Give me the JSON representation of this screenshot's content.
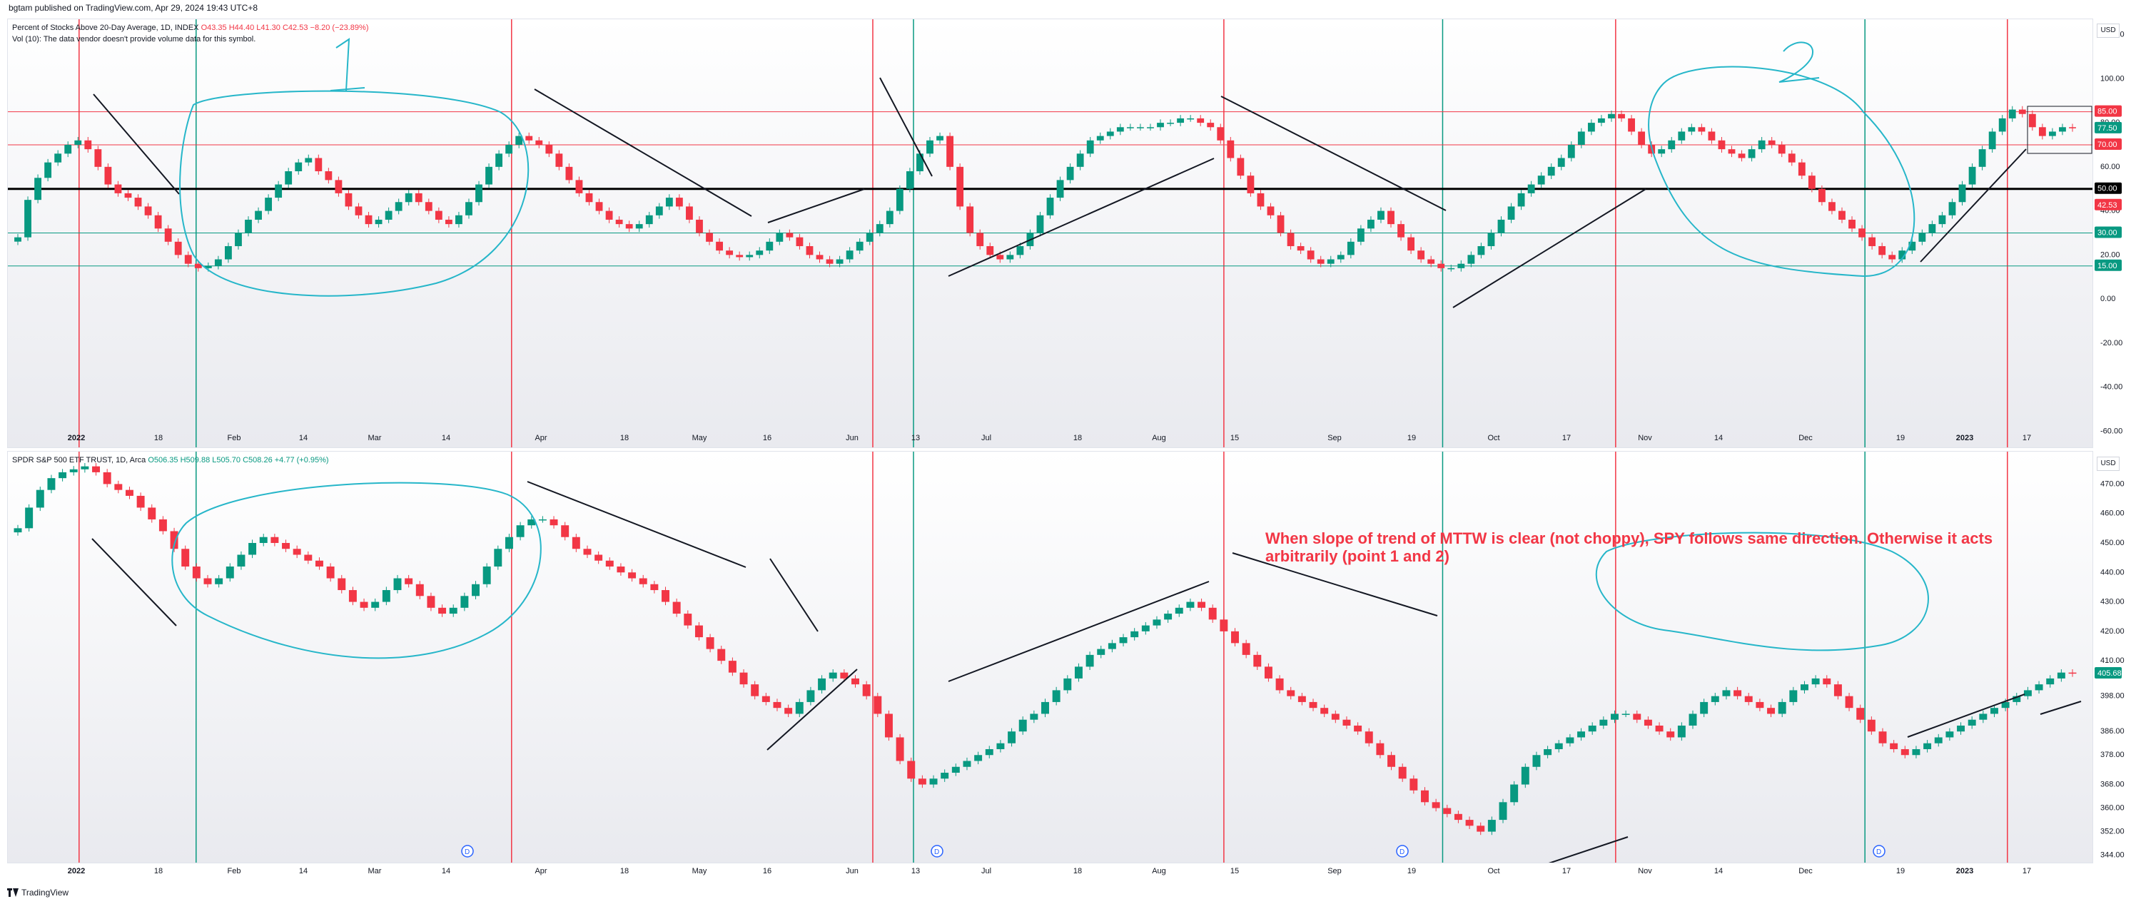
{
  "published": "bgtam published on TradingView.com, Apr 29, 2024 19:43 UTC+8",
  "top_pane": {
    "title": "Percent of Stocks Above 20-Day Average, 1D, INDEX",
    "ohlc": {
      "o": "O43.35",
      "h": "H44.40",
      "l": "L41.30",
      "c": "C42.53",
      "chg": "−8.20 (−23.89%)"
    },
    "vol_note": "Vol (10): The data vendor doesn't provide volume data for this symbol.",
    "handwritten_labels": [
      "1",
      "2"
    ]
  },
  "bottom_pane": {
    "title": "SPDR S&P 500 ETF TRUST, 1D, Arca",
    "ohlc": {
      "o": "O506.35",
      "h": "H509.88",
      "l": "L505.70",
      "c": "C508.26",
      "chg": "+4.77 (+0.95%)"
    },
    "dividend_marker": "D"
  },
  "currency": "USD",
  "annotation": "When slope of trend of MTTW is clear (not choppy), SPY follows same direction. Otherwise it acts arbitrarily (point 1 and 2)",
  "footer": "TradingView",
  "colors": {
    "up": "#089981",
    "down": "#f23645",
    "red_line": "#f23645",
    "green_line": "#089981",
    "circle": "#26b6c9",
    "trend": "#131722"
  },
  "x_axis": {
    "labels": [
      {
        "t": "2022",
        "bold": true
      },
      {
        "t": "18"
      },
      {
        "t": "Feb"
      },
      {
        "t": "14"
      },
      {
        "t": "Mar"
      },
      {
        "t": "14"
      },
      {
        "t": "Apr"
      },
      {
        "t": "18"
      },
      {
        "t": "May"
      },
      {
        "t": "16"
      },
      {
        "t": "Jun"
      },
      {
        "t": "13"
      },
      {
        "t": "Jul"
      },
      {
        "t": "18"
      },
      {
        "t": "Aug"
      },
      {
        "t": "15"
      },
      {
        "t": "Sep"
      },
      {
        "t": "19"
      },
      {
        "t": "Oct"
      },
      {
        "t": "17"
      },
      {
        "t": "Nov"
      },
      {
        "t": "14"
      },
      {
        "t": "Dec"
      },
      {
        "t": "19"
      },
      {
        "t": "2023",
        "bold": true
      },
      {
        "t": "17"
      }
    ]
  },
  "chart_data": [
    {
      "type": "candlestick",
      "name": "Percent of Stocks Above 20-Day Average",
      "y_ticks": [
        120,
        100,
        80,
        60,
        40,
        20,
        0,
        -20,
        -40,
        -60
      ],
      "ylim": [
        -68,
        127
      ],
      "horizontal_levels": [
        {
          "value": 85,
          "label": "85.00",
          "color": "#f23645"
        },
        {
          "value": 70,
          "label": "70.00",
          "color": "#f23645"
        },
        {
          "value": 50,
          "label": "50.00",
          "color": "#000000"
        },
        {
          "value": 30,
          "label": "30.00",
          "color": "#089981"
        },
        {
          "value": 15,
          "label": "15.00",
          "color": "#089981"
        }
      ],
      "price_tags": [
        {
          "value": 77.5,
          "label": "77.50",
          "color": "#089981"
        },
        {
          "value": 42.53,
          "label": "42.53",
          "color": "#f23645"
        }
      ],
      "closes": [
        28,
        45,
        55,
        62,
        66,
        70,
        72,
        68,
        60,
        52,
        48,
        46,
        42,
        38,
        32,
        26,
        20,
        16,
        14,
        15,
        18,
        24,
        30,
        36,
        40,
        46,
        52,
        58,
        62,
        64,
        58,
        54,
        48,
        42,
        38,
        34,
        36,
        40,
        44,
        48,
        44,
        40,
        36,
        34,
        38,
        44,
        52,
        60,
        66,
        70,
        74,
        72,
        70,
        66,
        60,
        54,
        48,
        44,
        40,
        36,
        34,
        32,
        34,
        38,
        42,
        46,
        42,
        36,
        30,
        26,
        22,
        20,
        19,
        20,
        22,
        26,
        30,
        28,
        24,
        20,
        18,
        16,
        18,
        22,
        26,
        30,
        34,
        40,
        50,
        58,
        66,
        72,
        74,
        60,
        42,
        30,
        24,
        20,
        18,
        20,
        24,
        30,
        38,
        46,
        54,
        60,
        66,
        72,
        74,
        76,
        78,
        78,
        78,
        78,
        80,
        80,
        82,
        82,
        80,
        78,
        72,
        64,
        56,
        48,
        42,
        38,
        30,
        24,
        22,
        18,
        16,
        18,
        20,
        26,
        32,
        36,
        40,
        34,
        28,
        22,
        18,
        16,
        14,
        14,
        16,
        20,
        24,
        30,
        36,
        42,
        48,
        52,
        56,
        60,
        64,
        70,
        76,
        80,
        82,
        84,
        82,
        76,
        70,
        66,
        68,
        72,
        76,
        78,
        76,
        72,
        68,
        66,
        64,
        68,
        72,
        70,
        66,
        62,
        56,
        50,
        44,
        40,
        36,
        32,
        28,
        24,
        20,
        18,
        22,
        26,
        30,
        34,
        38,
        44,
        52,
        60,
        68,
        76,
        82,
        86,
        84,
        78,
        74,
        76,
        78,
        77.5
      ],
      "vertical_red": [
        "2022-01-03",
        "2022-03-29",
        "2022-06-08",
        "2022-08-16",
        "2022-11-01",
        "2023-01-17"
      ],
      "vertical_green": [
        "2022-01-26",
        "2022-06-16",
        "2022-09-28",
        "2022-12-20"
      ]
    },
    {
      "type": "candlestick",
      "name": "SPY",
      "y_ticks": [
        470,
        460,
        450,
        440,
        430,
        420,
        410,
        398,
        386,
        378,
        368,
        360,
        352,
        344
      ],
      "ylim": [
        341,
        481
      ],
      "price_tags": [
        {
          "value": 405.68,
          "label": "405.68",
          "color": "#089981"
        }
      ],
      "closes": [
        455,
        462,
        468,
        472,
        474,
        475,
        476,
        474,
        470,
        468,
        466,
        462,
        458,
        454,
        448,
        442,
        438,
        436,
        438,
        442,
        446,
        450,
        452,
        450,
        448,
        446,
        444,
        442,
        438,
        434,
        430,
        428,
        430,
        434,
        438,
        436,
        432,
        428,
        426,
        428,
        432,
        436,
        442,
        448,
        452,
        456,
        458,
        458,
        456,
        452,
        448,
        446,
        444,
        442,
        440,
        438,
        436,
        434,
        430,
        426,
        422,
        418,
        414,
        410,
        406,
        402,
        398,
        396,
        394,
        392,
        396,
        400,
        404,
        406,
        404,
        402,
        398,
        392,
        384,
        376,
        370,
        368,
        370,
        372,
        374,
        376,
        378,
        380,
        382,
        386,
        390,
        392,
        396,
        400,
        404,
        408,
        412,
        414,
        416,
        418,
        420,
        422,
        424,
        426,
        428,
        430,
        428,
        424,
        420,
        416,
        412,
        408,
        404,
        400,
        398,
        396,
        394,
        392,
        390,
        388,
        386,
        382,
        378,
        374,
        370,
        366,
        362,
        360,
        358,
        356,
        354,
        352,
        356,
        362,
        368,
        374,
        378,
        380,
        382,
        384,
        386,
        388,
        390,
        392,
        392,
        390,
        388,
        386,
        384,
        388,
        392,
        396,
        398,
        400,
        398,
        396,
        394,
        392,
        396,
        400,
        402,
        404,
        402,
        398,
        394,
        390,
        386,
        382,
        380,
        378,
        380,
        382,
        384,
        386,
        388,
        390,
        392,
        394,
        396,
        398,
        400,
        402,
        404,
        406,
        405.68
      ],
      "vertical_red": [
        "2022-01-03",
        "2022-03-29",
        "2022-06-08",
        "2022-08-16",
        "2022-11-01",
        "2023-01-17"
      ],
      "vertical_green": [
        "2022-01-26",
        "2022-06-16",
        "2022-09-28",
        "2022-12-20"
      ]
    }
  ]
}
